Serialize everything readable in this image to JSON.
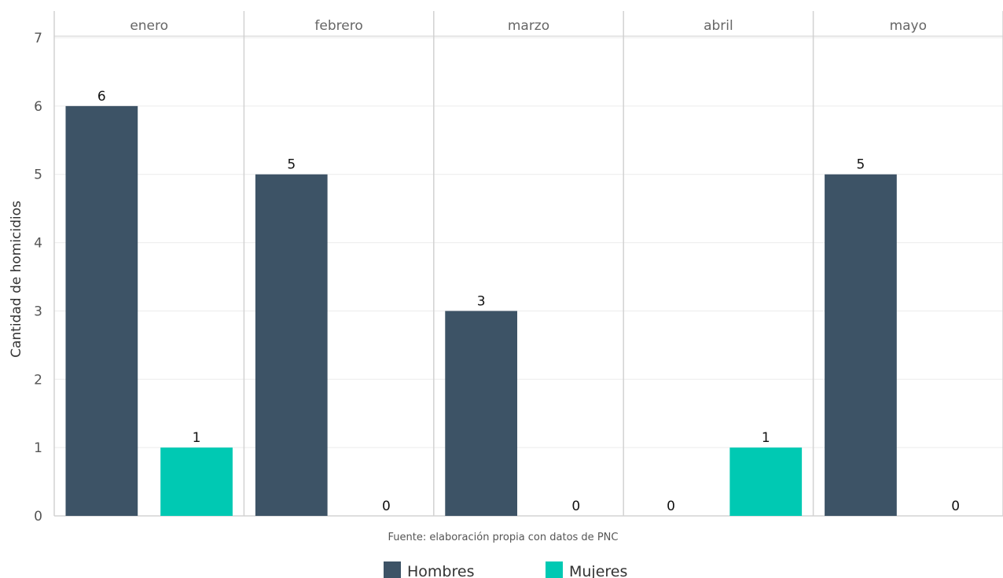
{
  "chart_data": {
    "type": "bar",
    "facets": [
      "enero",
      "febrero",
      "marzo",
      "abril",
      "mayo"
    ],
    "series": [
      {
        "name": "Hombres",
        "color": "#3d5366",
        "values": [
          6,
          5,
          3,
          0,
          5
        ]
      },
      {
        "name": "Mujeres",
        "color": "#00c9b3",
        "values": [
          1,
          0,
          0,
          1,
          0
        ]
      }
    ],
    "ylabel": "Cantidad de homicidios",
    "ylim": [
      0,
      7
    ],
    "yticks": [
      0,
      1,
      2,
      3,
      4,
      5,
      6,
      7
    ],
    "caption": "Fuente: elaboración propia con datos de PNC",
    "legend_position": "bottom",
    "grid": true
  }
}
